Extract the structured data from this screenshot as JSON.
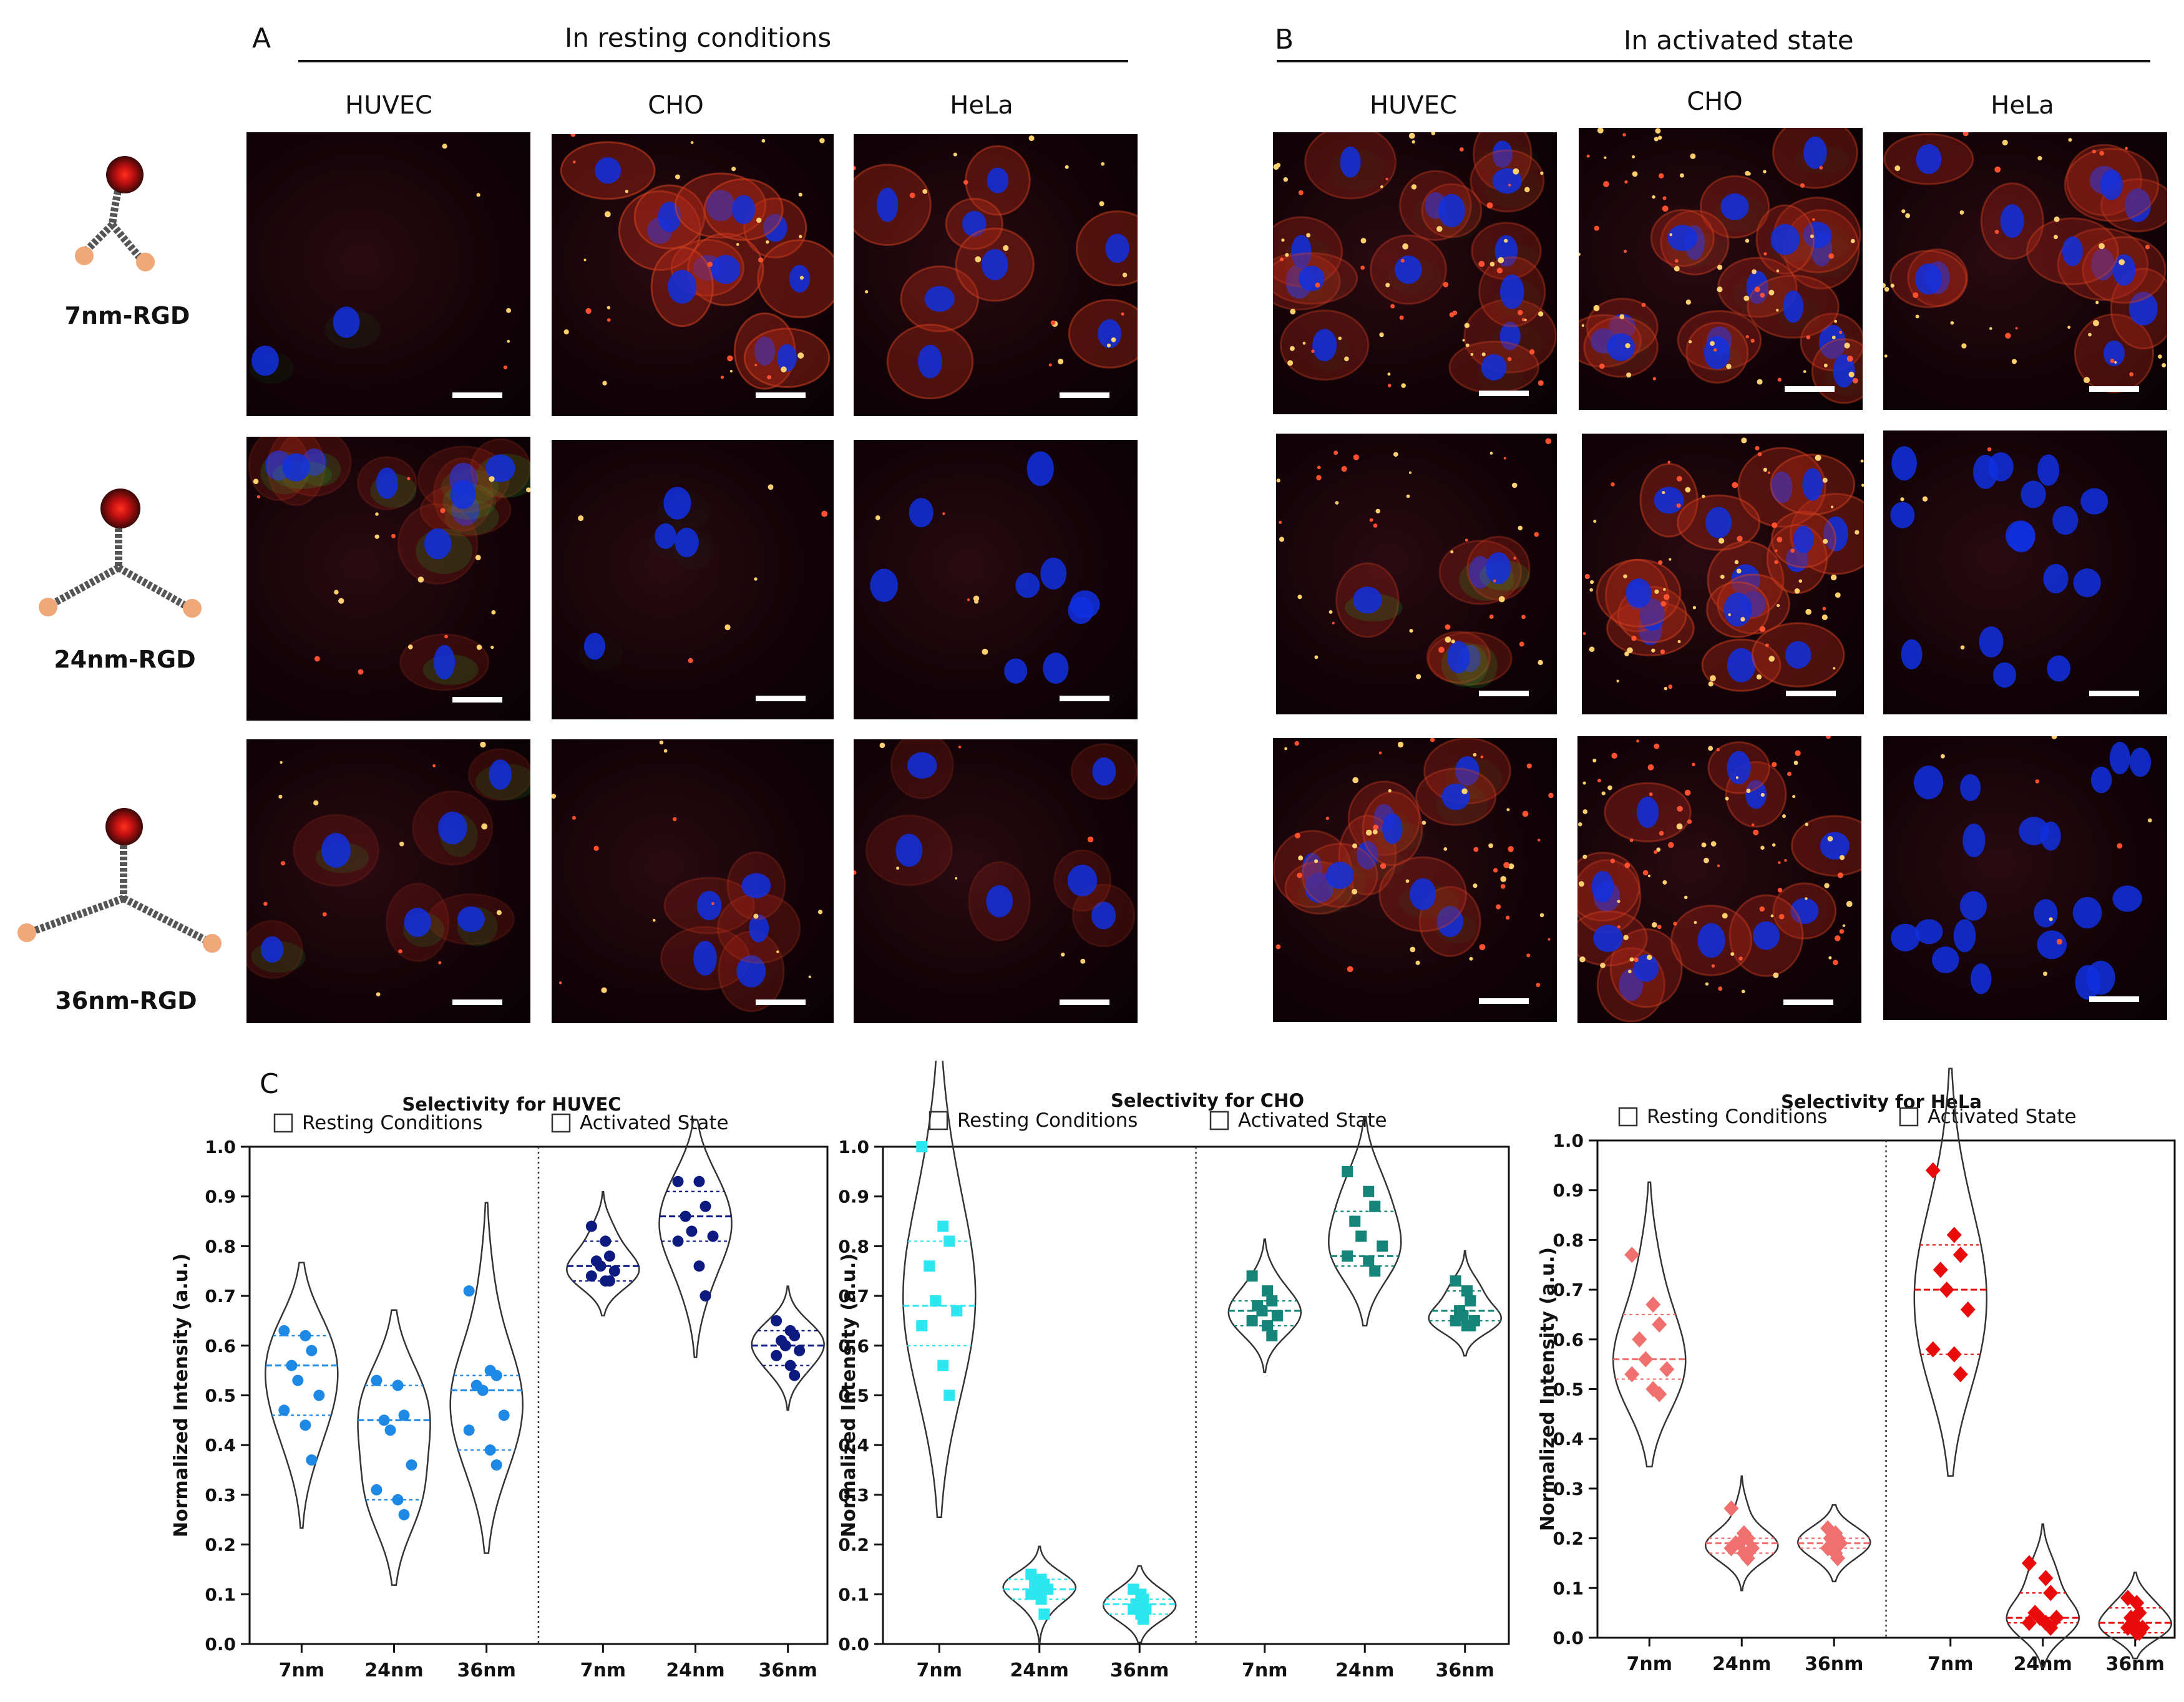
{
  "panel_a": {
    "letter": "A",
    "title": "In resting conditions"
  },
  "panel_b": {
    "letter": "B",
    "title": "In activated state"
  },
  "panel_c": {
    "letter": "C"
  },
  "cell_lines": [
    "HUVEC",
    "CHO",
    "HeLa"
  ],
  "constructs": [
    "7nm-RGD",
    "24nm-RGD",
    "36nm-RGD"
  ],
  "colors": {
    "huvec_resting": "#1e88e5",
    "huvec_activated": "#0d1a80",
    "cho_resting": "#2ee6f0",
    "cho_activated": "#15857a",
    "hela_resting": "#f07070",
    "hela_activated": "#e80c0c",
    "nucleus": "#1030e0",
    "membrane": "#b02818",
    "green": "#20b030"
  },
  "chart_data": [
    {
      "type": "violin",
      "title": "Selectivity for HUVEC",
      "ylabel": "Normalized Intensity (a.u.)",
      "ylim": [
        0,
        1.0
      ],
      "yticks": [
        "0.0",
        "0.1",
        "0.2",
        "0.3",
        "0.4",
        "0.5",
        "0.6",
        "0.7",
        "0.8",
        "0.9",
        "1.0"
      ],
      "legend": [
        "Resting Conditions",
        "Activated State"
      ],
      "marker": "circle",
      "groups": [
        {
          "condition": "Resting Conditions",
          "label": "7nm",
          "color": "#1e88e5",
          "points": [
            0.63,
            0.62,
            0.59,
            0.56,
            0.53,
            0.5,
            0.47,
            0.44,
            0.37
          ],
          "q": [
            0.46,
            0.56,
            0.62
          ]
        },
        {
          "condition": "Resting Conditions",
          "label": "24nm",
          "color": "#1e88e5",
          "points": [
            0.53,
            0.52,
            0.46,
            0.45,
            0.43,
            0.36,
            0.31,
            0.29,
            0.26
          ],
          "q": [
            0.29,
            0.45,
            0.52
          ]
        },
        {
          "condition": "Resting Conditions",
          "label": "36nm",
          "color": "#1e88e5",
          "points": [
            0.71,
            0.55,
            0.54,
            0.52,
            0.51,
            0.46,
            0.43,
            0.39,
            0.36
          ],
          "q": [
            0.39,
            0.51,
            0.54
          ]
        },
        {
          "condition": "Activated State",
          "label": "7nm",
          "color": "#0d1a80",
          "points": [
            0.84,
            0.81,
            0.78,
            0.77,
            0.76,
            0.75,
            0.74,
            0.73,
            0.73
          ],
          "q": [
            0.73,
            0.76,
            0.81
          ]
        },
        {
          "condition": "Activated State",
          "label": "24nm",
          "color": "#0d1a80",
          "points": [
            0.93,
            0.93,
            0.88,
            0.86,
            0.83,
            0.82,
            0.81,
            0.76,
            0.7
          ],
          "q": [
            0.81,
            0.86,
            0.91
          ]
        },
        {
          "condition": "Activated State",
          "label": "36nm",
          "color": "#0d1a80",
          "points": [
            0.65,
            0.63,
            0.62,
            0.61,
            0.6,
            0.59,
            0.58,
            0.56,
            0.54
          ],
          "q": [
            0.56,
            0.6,
            0.63
          ]
        }
      ]
    },
    {
      "type": "violin",
      "title": "Selectivity for CHO",
      "ylabel": "Normalized  Intensity (a.u.)",
      "ylim": [
        0,
        1.0
      ],
      "yticks": [
        "0.0",
        "0.1",
        "0.2",
        "0.3",
        "0.4",
        "0.5",
        "0.6",
        "0.7",
        "0.8",
        "0.9",
        "1.0"
      ],
      "legend": [
        "Resting Conditions",
        "Activated State"
      ],
      "marker": "square",
      "groups": [
        {
          "condition": "Resting Conditions",
          "label": "7nm",
          "color": "#2ee6f0",
          "points": [
            1.0,
            0.84,
            0.81,
            0.76,
            0.69,
            0.67,
            0.64,
            0.56,
            0.5
          ],
          "q": [
            0.6,
            0.68,
            0.81
          ]
        },
        {
          "condition": "Resting Conditions",
          "label": "24nm",
          "color": "#2ee6f0",
          "points": [
            0.14,
            0.13,
            0.12,
            0.12,
            0.11,
            0.11,
            0.1,
            0.09,
            0.06
          ],
          "q": [
            0.09,
            0.11,
            0.13
          ]
        },
        {
          "condition": "Resting Conditions",
          "label": "36nm",
          "color": "#2ee6f0",
          "points": [
            0.11,
            0.1,
            0.09,
            0.08,
            0.08,
            0.07,
            0.07,
            0.06,
            0.05
          ],
          "q": [
            0.06,
            0.08,
            0.09
          ]
        },
        {
          "condition": "Activated State",
          "label": "7nm",
          "color": "#15857a",
          "points": [
            0.74,
            0.71,
            0.69,
            0.68,
            0.67,
            0.66,
            0.65,
            0.64,
            0.62
          ],
          "q": [
            0.64,
            0.67,
            0.69
          ]
        },
        {
          "condition": "Activated State",
          "label": "24nm",
          "color": "#15857a",
          "points": [
            0.95,
            0.91,
            0.88,
            0.85,
            0.82,
            0.8,
            0.78,
            0.77,
            0.75
          ],
          "q": [
            0.76,
            0.78,
            0.87
          ]
        },
        {
          "condition": "Activated State",
          "label": "36nm",
          "color": "#15857a",
          "points": [
            0.73,
            0.71,
            0.69,
            0.67,
            0.66,
            0.65,
            0.65,
            0.64,
            0.64
          ],
          "q": [
            0.65,
            0.67,
            0.71
          ]
        }
      ]
    },
    {
      "type": "violin",
      "title": "Selectivity for HeLa",
      "ylabel": "Normalized Intensity (a.u.)",
      "ylim": [
        0,
        1.0
      ],
      "yticks": [
        "0.0",
        "0.1",
        "0.2",
        "0.3",
        "0.4",
        "0.5",
        "0.6",
        "0.7",
        "0.8",
        "0.9",
        "1.0"
      ],
      "legend": [
        "Resting Conditions",
        "Activated State"
      ],
      "marker": "diamond",
      "groups": [
        {
          "condition": "Resting Conditions",
          "label": "7nm",
          "color": "#f07070",
          "points": [
            0.77,
            0.67,
            0.63,
            0.6,
            0.56,
            0.54,
            0.53,
            0.5,
            0.49
          ],
          "q": [
            0.52,
            0.56,
            0.65
          ]
        },
        {
          "condition": "Resting Conditions",
          "label": "24nm",
          "color": "#f07070",
          "points": [
            0.26,
            0.21,
            0.2,
            0.19,
            0.19,
            0.18,
            0.18,
            0.17,
            0.16
          ],
          "q": [
            0.17,
            0.19,
            0.2
          ]
        },
        {
          "condition": "Resting Conditions",
          "label": "36nm",
          "color": "#f07070",
          "points": [
            0.22,
            0.21,
            0.2,
            0.2,
            0.19,
            0.19,
            0.18,
            0.17,
            0.16
          ],
          "q": [
            0.18,
            0.19,
            0.2
          ]
        },
        {
          "condition": "Activated State",
          "label": "7nm",
          "color": "#e80c0c",
          "points": [
            0.94,
            0.81,
            0.77,
            0.74,
            0.7,
            0.66,
            0.58,
            0.57,
            0.53
          ],
          "q": [
            0.57,
            0.7,
            0.79
          ]
        },
        {
          "condition": "Activated State",
          "label": "24nm",
          "color": "#e80c0c",
          "points": [
            0.15,
            0.12,
            0.09,
            0.05,
            0.04,
            0.04,
            0.03,
            0.03,
            0.02
          ],
          "q": [
            0.03,
            0.04,
            0.09
          ]
        },
        {
          "condition": "Activated State",
          "label": "36nm",
          "color": "#e80c0c",
          "points": [
            0.08,
            0.07,
            0.05,
            0.04,
            0.03,
            0.02,
            0.02,
            0.01,
            0.01
          ],
          "q": [
            0.01,
            0.03,
            0.06
          ]
        }
      ]
    }
  ]
}
